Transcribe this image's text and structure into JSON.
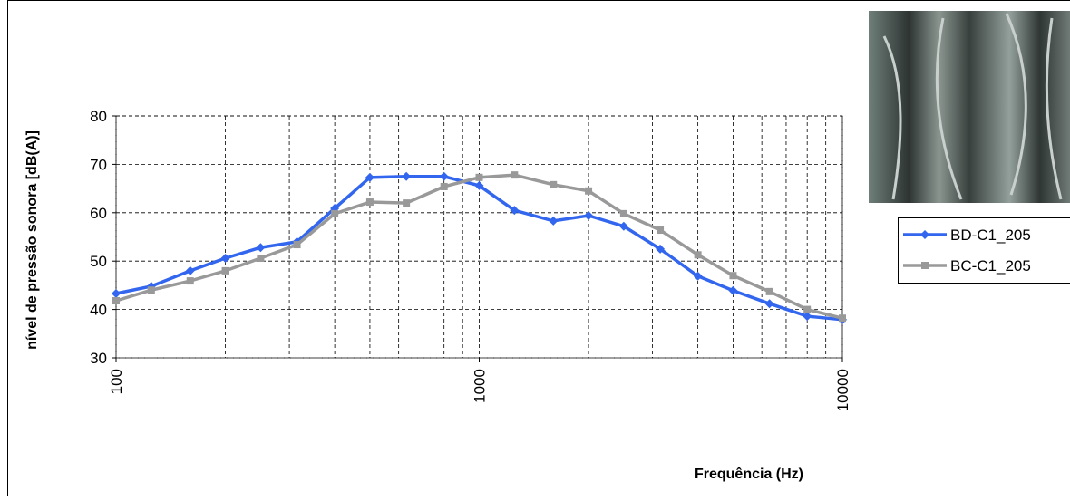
{
  "chart_data": {
    "type": "line",
    "x_label": "Frequência (Hz)",
    "y_label": "nível de pressão sonora [dB(A)]",
    "x": [
      100,
      125,
      160,
      200,
      250,
      315,
      400,
      500,
      630,
      800,
      1000,
      1250,
      1600,
      2000,
      2500,
      3150,
      4000,
      5000,
      6300,
      8000,
      10000
    ],
    "series": [
      {
        "name": "BD-C1_205",
        "color": "#3366ee",
        "marker": "diamond",
        "values": [
          43.3,
          44.8,
          48.0,
          50.6,
          52.8,
          54.0,
          60.9,
          67.3,
          67.5,
          67.5,
          65.6,
          60.5,
          58.3,
          59.4,
          57.2,
          52.5,
          46.9,
          43.9,
          41.2,
          38.6,
          37.9
        ]
      },
      {
        "name": "BC-C1_205",
        "color": "#999999",
        "marker": "square",
        "values": [
          41.8,
          44.0,
          45.9,
          48.0,
          50.6,
          53.4,
          59.8,
          62.2,
          62.0,
          65.4,
          67.3,
          67.8,
          65.8,
          64.5,
          59.8,
          56.4,
          51.3,
          47.0,
          43.7,
          40.0,
          38.2
        ]
      }
    ],
    "xlim": [
      100,
      10000
    ],
    "xticks": [
      100,
      1000,
      10000
    ],
    "x_log": true,
    "ylim": [
      30,
      80
    ],
    "yticks": [
      30,
      40,
      50,
      60,
      70,
      80
    ],
    "grid": true,
    "legend": "right"
  }
}
